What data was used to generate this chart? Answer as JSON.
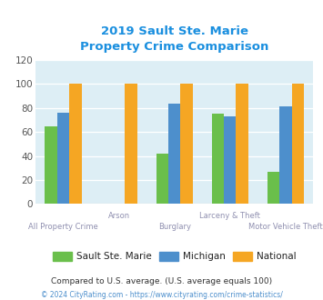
{
  "title_line1": "2019 Sault Ste. Marie",
  "title_line2": "Property Crime Comparison",
  "title_color": "#1a8fdf",
  "categories": [
    "All Property Crime",
    "Arson",
    "Burglary",
    "Larceny & Theft",
    "Motor Vehicle Theft"
  ],
  "sault_values": [
    65,
    0,
    42,
    75,
    27
  ],
  "michigan_values": [
    76,
    0,
    84,
    73,
    81
  ],
  "national_values": [
    100,
    100,
    100,
    100,
    100
  ],
  "sault_color": "#6abf4b",
  "michigan_color": "#4d8fcc",
  "national_color": "#f5a623",
  "ylim": [
    0,
    120
  ],
  "yticks": [
    0,
    20,
    40,
    60,
    80,
    100,
    120
  ],
  "legend_labels": [
    "Sault Ste. Marie",
    "Michigan",
    "National"
  ],
  "footnote1": "Compared to U.S. average. (U.S. average equals 100)",
  "footnote2": "© 2024 CityRating.com - https://www.cityrating.com/crime-statistics/",
  "footnote1_color": "#333333",
  "footnote2_color": "#4d8fcc",
  "fig_bg_color": "#ffffff",
  "plot_bg_color": "#ddeef5",
  "xlabel_color": "#9090b0",
  "bar_width": 0.22
}
